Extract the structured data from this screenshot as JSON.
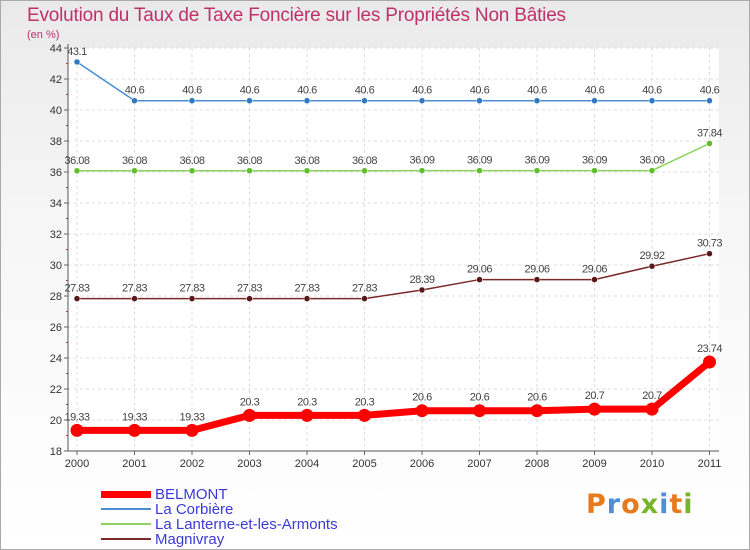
{
  "title": "Evolution du Taux de Taxe Foncière sur les Propriétés Non Bâties",
  "unit_label": "(en %)",
  "logo": {
    "letters": [
      "P",
      "r",
      "o",
      "x",
      "i",
      "t",
      "i"
    ],
    "colors": [
      "#e87a1e",
      "#4f8fd6",
      "#e87a1e",
      "#78b42a",
      "#4f8fd6",
      "#e87a1e",
      "#78b42a"
    ]
  },
  "chart_data": {
    "type": "line",
    "title": "Evolution du Taux de Taxe Foncière sur les Propriétés Non Bâties",
    "ylabel": "(en %)",
    "xlabel": "",
    "x": [
      "2000",
      "2001",
      "2002",
      "2003",
      "2004",
      "2005",
      "2006",
      "2007",
      "2008",
      "2009",
      "2010",
      "2011"
    ],
    "ylim": [
      18,
      44
    ],
    "yticks": [
      18,
      20,
      22,
      24,
      26,
      28,
      30,
      32,
      34,
      36,
      38,
      40,
      42,
      44
    ],
    "grid": true,
    "legend_position": "bottom-left",
    "series": [
      {
        "name": "BELMONT",
        "color": "#ff0000",
        "emphasis": true,
        "values": [
          19.33,
          19.33,
          19.33,
          20.3,
          20.3,
          20.3,
          20.6,
          20.6,
          20.6,
          20.7,
          20.7,
          23.74
        ],
        "labels": [
          "19.33",
          "19.33",
          "19.33",
          "20.3",
          "20.3",
          "20.3",
          "20.6",
          "20.6",
          "20.6",
          "20.7",
          "20.7",
          "23.74"
        ]
      },
      {
        "name": "La Corbière",
        "color": "#4b8fd0",
        "point_color": "#2f79c4",
        "values": [
          43.1,
          40.6,
          40.6,
          40.6,
          40.6,
          40.6,
          40.6,
          40.6,
          40.6,
          40.6,
          40.6,
          40.6
        ],
        "labels": [
          "43.1",
          "40.6",
          "40.6",
          "40.6",
          "40.6",
          "40.6",
          "40.6",
          "40.6",
          "40.6",
          "40.6",
          "40.6",
          "40.6"
        ]
      },
      {
        "name": "La Lanterne-et-les-Armonts",
        "color": "#8fd260",
        "point_color": "#5fbf2b",
        "values": [
          36.08,
          36.08,
          36.08,
          36.08,
          36.08,
          36.08,
          36.09,
          36.09,
          36.09,
          36.09,
          36.09,
          37.84
        ],
        "labels": [
          "36.08",
          "36.08",
          "36.08",
          "36.08",
          "36.08",
          "36.08",
          "36.09",
          "36.09",
          "36.09",
          "36.09",
          "36.09",
          "37.84"
        ]
      },
      {
        "name": "Magnivray",
        "color": "#7a2a2a",
        "point_color": "#5a1818",
        "values": [
          27.83,
          27.83,
          27.83,
          27.83,
          27.83,
          27.83,
          28.39,
          29.06,
          29.06,
          29.06,
          29.92,
          30.73
        ],
        "labels": [
          "27.83",
          "27.83",
          "27.83",
          "27.83",
          "27.83",
          "27.83",
          "28.39",
          "29.06",
          "29.06",
          "29.06",
          "29.92",
          "30.73"
        ]
      }
    ]
  }
}
